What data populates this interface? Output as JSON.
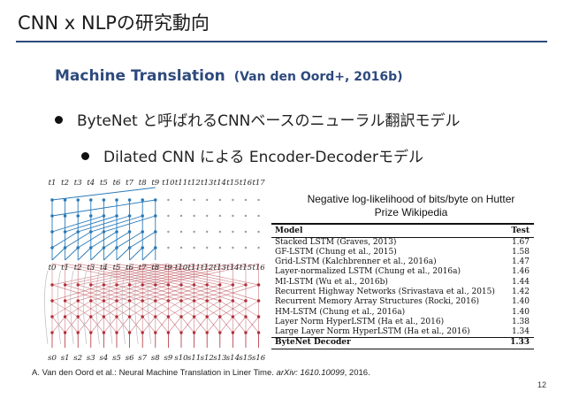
{
  "slide": {
    "title": "CNN x NLPの研究動向",
    "subtitle": "Machine Translation",
    "subtitle_citation": "(Van den Oord+, 2016b)",
    "bullets": [
      "ByteNet と呼ばれるCNNベースのニューラル翻訳モデル",
      "Dilated CNN による Encoder-Decoderモデル"
    ],
    "page_number": "12"
  },
  "figure": {
    "top_labels": [
      "t1",
      "t2",
      "t3",
      "t4",
      "t5",
      "t6",
      "t7",
      "t8",
      "t9",
      "t10",
      "t11",
      "t12",
      "t13",
      "t14",
      "t15",
      "t16",
      "t17"
    ],
    "middle_labels": [
      "t0",
      "t1",
      "t2",
      "t3",
      "t4",
      "t5",
      "t6",
      "t7",
      "t8",
      "t9",
      "t10",
      "t11",
      "t12",
      "t13",
      "t14",
      "t15",
      "t16"
    ],
    "bottom_labels": [
      "s0",
      "s1",
      "s2",
      "s3",
      "s4",
      "s5",
      "s6",
      "s7",
      "s8",
      "s9",
      "s10",
      "s11",
      "s12",
      "s13",
      "s14",
      "s15",
      "s16"
    ],
    "colors": {
      "decoder": "#2a7ab8",
      "encoder": "#b0303a",
      "inactive": "#999999"
    }
  },
  "table": {
    "caption": "Negative log-likelihood of bits/byte on Hutter Prize Wikipedia",
    "header": {
      "model": "Model",
      "test": "Test"
    },
    "rows": [
      {
        "model": "Stacked LSTM (Graves, 2013)",
        "test": "1.67"
      },
      {
        "model": "GF-LSTM (Chung et al., 2015)",
        "test": "1.58"
      },
      {
        "model": "Grid-LSTM (Kalchbrenner et al., 2016a)",
        "test": "1.47"
      },
      {
        "model": "Layer-normalized LSTM (Chung et al., 2016a)",
        "test": "1.46"
      },
      {
        "model": "MI-LSTM (Wu et al., 2016b)",
        "test": "1.44"
      },
      {
        "model": "Recurrent Highway Networks (Srivastava et al., 2015)",
        "test": "1.42"
      },
      {
        "model": "Recurrent Memory Array Structures (Rocki, 2016)",
        "test": "1.40"
      },
      {
        "model": "HM-LSTM (Chung et al., 2016a)",
        "test": "1.40"
      },
      {
        "model": "Layer Norm HyperLSTM (Ha et al., 2016)",
        "test": "1.38"
      },
      {
        "model": "Large Layer Norm HyperLSTM (Ha et al., 2016)",
        "test": "1.34"
      }
    ],
    "final_row": {
      "model": "ByteNet Decoder",
      "test": "1.33"
    }
  },
  "reference": {
    "text": "A. Van den Oord et al.: Neural Machine Translation in Liner Time.",
    "venue": "arXiv: 1610.10099",
    "year": ", 2016."
  }
}
